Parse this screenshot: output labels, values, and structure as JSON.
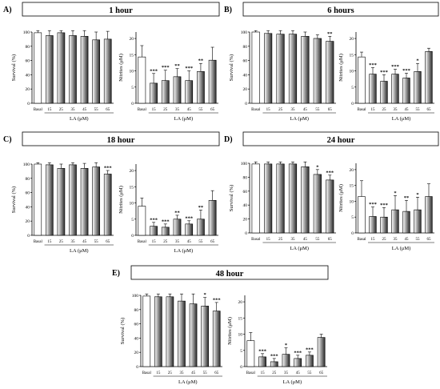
{
  "colors": {
    "text": "#000000",
    "bar_light": "#ffffff",
    "bar_dark": "#2b2b2b",
    "stroke": "#000000"
  },
  "shared": {
    "categories": [
      "Basal",
      "15",
      "25",
      "35",
      "45",
      "55",
      "65"
    ],
    "treatment_label": "LA (μM)",
    "survival_ylabel": "Survival (%)",
    "nitrites_ylabel": "Nitrites (μM)",
    "survival_ticks": [
      "0",
      "20",
      "40",
      "60",
      "80",
      "100"
    ],
    "nitrites_ticks": [
      "0",
      "5",
      "10",
      "15",
      "20"
    ]
  },
  "panels": [
    {
      "letter": "A)",
      "title": "1 hour"
    },
    {
      "letter": "B)",
      "title": "6 hours"
    },
    {
      "letter": "C)",
      "title": "18 hour"
    },
    {
      "letter": "D)",
      "title": "24 hour"
    },
    {
      "letter": "E)",
      "title": "48 hour"
    }
  ],
  "chart_data": [
    {
      "panel": "A)",
      "measure": "survival",
      "type": "bar",
      "ylim": [
        0,
        100
      ],
      "values": [
        99,
        95,
        99,
        95,
        94,
        89,
        90
      ],
      "errors": [
        3,
        10,
        5,
        10,
        10,
        11,
        11
      ],
      "significance": [
        "",
        "",
        "",
        "",
        "",
        "",
        ""
      ]
    },
    {
      "panel": "A)",
      "measure": "nitrites",
      "type": "bar",
      "ylim": [
        0,
        22
      ],
      "values": [
        14.3,
        6.2,
        7.0,
        8.2,
        7.0,
        9.8,
        13.3
      ],
      "errors": [
        3.5,
        3.0,
        3.2,
        2.5,
        3.0,
        2.5,
        4.0
      ],
      "significance": [
        "",
        "***",
        "***",
        "**",
        "***",
        "**",
        ""
      ]
    },
    {
      "panel": "B)",
      "measure": "survival",
      "type": "bar",
      "ylim": [
        0,
        100
      ],
      "values": [
        100,
        98,
        97,
        97,
        94,
        91,
        87
      ],
      "errors": [
        3,
        5,
        6,
        5,
        6,
        5,
        7
      ],
      "significance": [
        "",
        "",
        "",
        "",
        "",
        "",
        "**"
      ]
    },
    {
      "panel": "B)",
      "measure": "nitrites",
      "type": "bar",
      "ylim": [
        0,
        22
      ],
      "values": [
        14.3,
        9.0,
        6.8,
        9.0,
        7.8,
        9.8,
        16.0
      ],
      "errors": [
        1.5,
        2.0,
        2.0,
        1.5,
        1.5,
        2.5,
        1.0
      ],
      "significance": [
        "",
        "***",
        "***",
        "***",
        "***",
        "*",
        ""
      ]
    },
    {
      "panel": "C)",
      "measure": "survival",
      "type": "bar",
      "ylim": [
        0,
        100
      ],
      "values": [
        100,
        99,
        94,
        99,
        94,
        96,
        86
      ],
      "errors": [
        4,
        5,
        6,
        3,
        7,
        6,
        5
      ],
      "significance": [
        "",
        "",
        "",
        "",
        "",
        "",
        "***"
      ]
    },
    {
      "panel": "C)",
      "measure": "nitrites",
      "type": "bar",
      "ylim": [
        0,
        22
      ],
      "values": [
        9.0,
        2.8,
        2.5,
        5.0,
        3.5,
        5.0,
        10.8
      ],
      "errors": [
        2.5,
        1.2,
        1.0,
        1.2,
        1.0,
        2.8,
        3.0
      ],
      "significance": [
        "",
        "***",
        "***",
        "**",
        "***",
        "**",
        ""
      ]
    },
    {
      "panel": "D)",
      "measure": "survival",
      "type": "bar",
      "ylim": [
        0,
        100
      ],
      "values": [
        99,
        99,
        99,
        99,
        95,
        84,
        76
      ],
      "errors": [
        3,
        5,
        10,
        12,
        10,
        7,
        7
      ],
      "significance": [
        "",
        "",
        "",
        "",
        "",
        "*",
        "***"
      ]
    },
    {
      "panel": "D)",
      "measure": "nitrites",
      "type": "bar",
      "ylim": [
        0,
        22
      ],
      "values": [
        11.5,
        5.2,
        5.0,
        7.3,
        6.8,
        7.3,
        11.5
      ],
      "errors": [
        5.0,
        3.0,
        3.0,
        4.5,
        3.5,
        4.0,
        4.0
      ],
      "significance": [
        "",
        "***",
        "***",
        "*",
        "**",
        "*",
        ""
      ]
    },
    {
      "panel": "E)",
      "measure": "survival",
      "type": "bar",
      "ylim": [
        0,
        100
      ],
      "values": [
        99,
        98,
        98,
        92,
        88,
        85,
        78
      ],
      "errors": [
        6,
        5,
        5,
        12,
        14,
        12,
        12
      ],
      "significance": [
        "",
        "",
        "",
        "",
        "",
        "*",
        "***"
      ]
    },
    {
      "panel": "E)",
      "measure": "nitrites",
      "type": "bar",
      "ylim": [
        0,
        22
      ],
      "values": [
        8.0,
        3.0,
        1.5,
        3.8,
        2.5,
        3.5,
        9.0
      ],
      "errors": [
        2.5,
        1.0,
        1.0,
        2.0,
        1.0,
        1.0,
        1.0
      ],
      "significance": [
        "",
        "***",
        "***",
        "*",
        "***",
        "***",
        ""
      ]
    }
  ]
}
